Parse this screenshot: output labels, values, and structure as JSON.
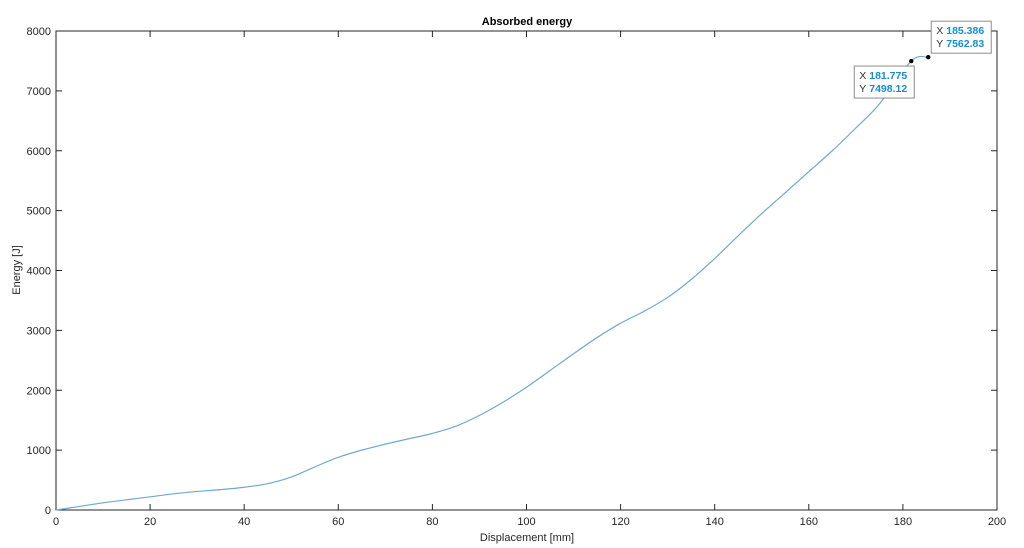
{
  "chart_data": {
    "type": "line",
    "title": "Absorbed energy",
    "xlabel": "Displacement [mm]",
    "ylabel": "Energy [J]",
    "xlim": [
      0,
      200
    ],
    "ylim": [
      0,
      8000
    ],
    "xticks": [
      0,
      20,
      40,
      60,
      80,
      100,
      120,
      140,
      160,
      180,
      200
    ],
    "yticks": [
      0,
      1000,
      2000,
      3000,
      4000,
      5000,
      6000,
      7000,
      8000
    ],
    "grid": false,
    "line_color": "#6fa8d6",
    "series": [
      {
        "x": [
          0,
          5,
          10,
          15,
          20,
          25,
          30,
          35,
          40,
          45,
          50,
          55,
          60,
          65,
          70,
          75,
          80,
          85,
          90,
          95,
          100,
          105,
          110,
          115,
          120,
          125,
          130,
          135,
          140,
          145,
          150,
          155,
          160,
          165,
          170,
          175,
          181.775,
          185.386
        ],
        "y": [
          0,
          60,
          120,
          170,
          220,
          270,
          310,
          340,
          380,
          440,
          550,
          720,
          880,
          1000,
          1100,
          1190,
          1280,
          1400,
          1580,
          1800,
          2050,
          2330,
          2610,
          2880,
          3120,
          3320,
          3550,
          3850,
          4200,
          4580,
          4950,
          5300,
          5650,
          6000,
          6380,
          6780,
          7498.12,
          7562.83
        ]
      }
    ],
    "datatips": [
      {
        "x_key": "X",
        "x_value": "181.775",
        "y_key": "Y",
        "y_value": "7498.12",
        "x": 181.775,
        "y": 7498.12,
        "placement": "below-left"
      },
      {
        "x_key": "X",
        "x_value": "185.386",
        "y_key": "Y",
        "y_value": "7562.83",
        "x": 185.386,
        "y": 7562.83,
        "placement": "above-right"
      }
    ]
  }
}
